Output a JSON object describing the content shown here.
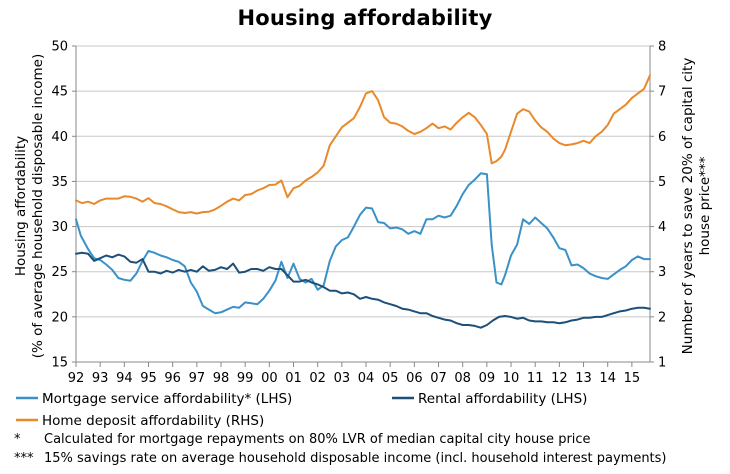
{
  "chart_data": {
    "type": "line",
    "title": "Housing affordability",
    "ylabel_left": [
      "Housing affordability",
      "(% of average household disposable income)"
    ],
    "ylabel_right": [
      "Number of years to save 20% of capital city",
      "house price***"
    ],
    "ylim_left": [
      15,
      50
    ],
    "yticks_left": [
      "15",
      "20",
      "25",
      "30",
      "35",
      "40",
      "45",
      "50"
    ],
    "ylim_right": [
      1,
      8
    ],
    "yticks_right": [
      "1",
      "2",
      "3",
      "4",
      "5",
      "6",
      "7",
      "8"
    ],
    "xlim": [
      1992,
      2015.75
    ],
    "xticks": [
      "92",
      "93",
      "94",
      "95",
      "96",
      "97",
      "98",
      "99",
      "00",
      "01",
      "02",
      "03",
      "04",
      "05",
      "06",
      "07",
      "08",
      "09",
      "10",
      "11",
      "12",
      "13",
      "14",
      "15"
    ],
    "grid": "horizontal",
    "legend_position": "bottom",
    "series": [
      {
        "name": "Mortgage service affordability* (LHS)",
        "axis": "left",
        "color": "#3a91c8",
        "points": [
          [
            1992.0,
            30.8
          ],
          [
            1992.2,
            29.0
          ],
          [
            1992.5,
            27.5
          ],
          [
            1992.75,
            26.5
          ],
          [
            1993.0,
            26.3
          ],
          [
            1993.25,
            25.8
          ],
          [
            1993.5,
            25.2
          ],
          [
            1993.75,
            24.3
          ],
          [
            1994.0,
            24.1
          ],
          [
            1994.25,
            24.0
          ],
          [
            1994.5,
            24.8
          ],
          [
            1994.75,
            26.2
          ],
          [
            1995.0,
            27.3
          ],
          [
            1995.25,
            27.1
          ],
          [
            1995.5,
            26.8
          ],
          [
            1995.75,
            26.6
          ],
          [
            1996.0,
            26.3
          ],
          [
            1996.25,
            26.1
          ],
          [
            1996.5,
            25.6
          ],
          [
            1996.75,
            23.8
          ],
          [
            1997.0,
            22.8
          ],
          [
            1997.25,
            21.2
          ],
          [
            1997.5,
            20.8
          ],
          [
            1997.75,
            20.4
          ],
          [
            1998.0,
            20.5
          ],
          [
            1998.25,
            20.8
          ],
          [
            1998.5,
            21.1
          ],
          [
            1998.75,
            21.0
          ],
          [
            1999.0,
            21.6
          ],
          [
            1999.25,
            21.5
          ],
          [
            1999.5,
            21.4
          ],
          [
            1999.75,
            22.0
          ],
          [
            2000.0,
            22.9
          ],
          [
            2000.25,
            24.0
          ],
          [
            2000.5,
            26.1
          ],
          [
            2000.75,
            24.3
          ],
          [
            2001.0,
            25.9
          ],
          [
            2001.25,
            24.2
          ],
          [
            2001.5,
            23.8
          ],
          [
            2001.75,
            24.2
          ],
          [
            2002.0,
            23.0
          ],
          [
            2002.25,
            23.5
          ],
          [
            2002.5,
            26.2
          ],
          [
            2002.75,
            27.8
          ],
          [
            2003.0,
            28.5
          ],
          [
            2003.25,
            28.8
          ],
          [
            2003.5,
            30.0
          ],
          [
            2003.75,
            31.3
          ],
          [
            2004.0,
            32.1
          ],
          [
            2004.25,
            32.0
          ],
          [
            2004.5,
            30.5
          ],
          [
            2004.75,
            30.4
          ],
          [
            2005.0,
            29.8
          ],
          [
            2005.25,
            29.9
          ],
          [
            2005.5,
            29.7
          ],
          [
            2005.75,
            29.2
          ],
          [
            2006.0,
            29.5
          ],
          [
            2006.25,
            29.2
          ],
          [
            2006.5,
            30.8
          ],
          [
            2006.75,
            30.8
          ],
          [
            2007.0,
            31.2
          ],
          [
            2007.25,
            31.0
          ],
          [
            2007.5,
            31.2
          ],
          [
            2007.75,
            32.3
          ],
          [
            2008.0,
            33.6
          ],
          [
            2008.25,
            34.6
          ],
          [
            2008.5,
            35.2
          ],
          [
            2008.75,
            35.9
          ],
          [
            2009.0,
            35.8
          ],
          [
            2009.2,
            28.0
          ],
          [
            2009.4,
            23.8
          ],
          [
            2009.6,
            23.6
          ],
          [
            2009.75,
            24.6
          ],
          [
            2010.0,
            26.8
          ],
          [
            2010.25,
            28.0
          ],
          [
            2010.5,
            30.8
          ],
          [
            2010.75,
            30.3
          ],
          [
            2011.0,
            31.0
          ],
          [
            2011.25,
            30.4
          ],
          [
            2011.5,
            29.8
          ],
          [
            2011.75,
            28.8
          ],
          [
            2012.0,
            27.6
          ],
          [
            2012.25,
            27.4
          ],
          [
            2012.5,
            25.7
          ],
          [
            2012.75,
            25.8
          ],
          [
            2013.0,
            25.4
          ],
          [
            2013.25,
            24.8
          ],
          [
            2013.5,
            24.5
          ],
          [
            2013.75,
            24.3
          ],
          [
            2014.0,
            24.2
          ],
          [
            2014.25,
            24.7
          ],
          [
            2014.5,
            25.2
          ],
          [
            2014.75,
            25.6
          ],
          [
            2015.0,
            26.3
          ],
          [
            2015.25,
            26.7
          ],
          [
            2015.5,
            26.4
          ],
          [
            2015.75,
            26.4
          ]
        ]
      },
      {
        "name": "Rental affordability (LHS)",
        "axis": "left",
        "color": "#1d4f79",
        "points": [
          [
            1992.0,
            27.0
          ],
          [
            1992.25,
            27.1
          ],
          [
            1992.5,
            27.0
          ],
          [
            1992.75,
            26.2
          ],
          [
            1993.0,
            26.5
          ],
          [
            1993.25,
            26.8
          ],
          [
            1993.5,
            26.6
          ],
          [
            1993.75,
            26.9
          ],
          [
            1994.0,
            26.7
          ],
          [
            1994.25,
            26.1
          ],
          [
            1994.5,
            26.0
          ],
          [
            1994.75,
            26.4
          ],
          [
            1995.0,
            25.0
          ],
          [
            1995.25,
            25.0
          ],
          [
            1995.5,
            24.8
          ],
          [
            1995.75,
            25.1
          ],
          [
            1996.0,
            24.9
          ],
          [
            1996.25,
            25.2
          ],
          [
            1996.5,
            25.0
          ],
          [
            1996.75,
            25.2
          ],
          [
            1997.0,
            25.0
          ],
          [
            1997.25,
            25.6
          ],
          [
            1997.5,
            25.1
          ],
          [
            1997.75,
            25.2
          ],
          [
            1998.0,
            25.5
          ],
          [
            1998.25,
            25.3
          ],
          [
            1998.5,
            25.9
          ],
          [
            1998.75,
            24.9
          ],
          [
            1999.0,
            25.0
          ],
          [
            1999.25,
            25.3
          ],
          [
            1999.5,
            25.3
          ],
          [
            1999.75,
            25.1
          ],
          [
            2000.0,
            25.5
          ],
          [
            2000.25,
            25.3
          ],
          [
            2000.5,
            25.3
          ],
          [
            2000.75,
            24.6
          ],
          [
            2001.0,
            23.9
          ],
          [
            2001.25,
            23.9
          ],
          [
            2001.5,
            24.1
          ],
          [
            2001.75,
            23.8
          ],
          [
            2002.0,
            23.6
          ],
          [
            2002.25,
            23.3
          ],
          [
            2002.5,
            22.9
          ],
          [
            2002.75,
            22.9
          ],
          [
            2003.0,
            22.6
          ],
          [
            2003.25,
            22.7
          ],
          [
            2003.5,
            22.5
          ],
          [
            2003.75,
            22.0
          ],
          [
            2004.0,
            22.2
          ],
          [
            2004.25,
            22.0
          ],
          [
            2004.5,
            21.9
          ],
          [
            2004.75,
            21.6
          ],
          [
            2005.0,
            21.4
          ],
          [
            2005.25,
            21.2
          ],
          [
            2005.5,
            20.9
          ],
          [
            2005.75,
            20.8
          ],
          [
            2006.0,
            20.6
          ],
          [
            2006.25,
            20.4
          ],
          [
            2006.5,
            20.4
          ],
          [
            2006.75,
            20.1
          ],
          [
            2007.0,
            19.9
          ],
          [
            2007.25,
            19.7
          ],
          [
            2007.5,
            19.6
          ],
          [
            2007.75,
            19.3
          ],
          [
            2008.0,
            19.1
          ],
          [
            2008.25,
            19.1
          ],
          [
            2008.5,
            19.0
          ],
          [
            2008.75,
            18.8
          ],
          [
            2009.0,
            19.1
          ],
          [
            2009.25,
            19.6
          ],
          [
            2009.5,
            20.0
          ],
          [
            2009.75,
            20.1
          ],
          [
            2010.0,
            20.0
          ],
          [
            2010.25,
            19.8
          ],
          [
            2010.5,
            19.9
          ],
          [
            2010.75,
            19.6
          ],
          [
            2011.0,
            19.5
          ],
          [
            2011.25,
            19.5
          ],
          [
            2011.5,
            19.4
          ],
          [
            2011.75,
            19.4
          ],
          [
            2012.0,
            19.3
          ],
          [
            2012.25,
            19.4
          ],
          [
            2012.5,
            19.6
          ],
          [
            2012.75,
            19.7
          ],
          [
            2013.0,
            19.9
          ],
          [
            2013.25,
            19.9
          ],
          [
            2013.5,
            20.0
          ],
          [
            2013.75,
            20.0
          ],
          [
            2014.0,
            20.2
          ],
          [
            2014.25,
            20.4
          ],
          [
            2014.5,
            20.6
          ],
          [
            2014.75,
            20.7
          ],
          [
            2015.0,
            20.9
          ],
          [
            2015.25,
            21.0
          ],
          [
            2015.5,
            21.0
          ],
          [
            2015.75,
            20.9
          ]
        ]
      },
      {
        "name": "Home deposit affordability (RHS)",
        "axis": "right",
        "color": "#e8892b",
        "points": [
          [
            1992.0,
            4.58
          ],
          [
            1992.25,
            4.52
          ],
          [
            1992.5,
            4.55
          ],
          [
            1992.75,
            4.5
          ],
          [
            1993.0,
            4.58
          ],
          [
            1993.25,
            4.62
          ],
          [
            1993.5,
            4.62
          ],
          [
            1993.75,
            4.62
          ],
          [
            1994.0,
            4.67
          ],
          [
            1994.25,
            4.66
          ],
          [
            1994.5,
            4.62
          ],
          [
            1994.75,
            4.55
          ],
          [
            1995.0,
            4.63
          ],
          [
            1995.25,
            4.52
          ],
          [
            1995.5,
            4.5
          ],
          [
            1995.75,
            4.45
          ],
          [
            1996.0,
            4.38
          ],
          [
            1996.25,
            4.32
          ],
          [
            1996.5,
            4.3
          ],
          [
            1996.75,
            4.32
          ],
          [
            1997.0,
            4.29
          ],
          [
            1997.25,
            4.32
          ],
          [
            1997.5,
            4.33
          ],
          [
            1997.75,
            4.38
          ],
          [
            1998.0,
            4.46
          ],
          [
            1998.25,
            4.55
          ],
          [
            1998.5,
            4.62
          ],
          [
            1998.75,
            4.58
          ],
          [
            1999.0,
            4.7
          ],
          [
            1999.25,
            4.72
          ],
          [
            1999.5,
            4.8
          ],
          [
            1999.75,
            4.85
          ],
          [
            2000.0,
            4.92
          ],
          [
            2000.25,
            4.93
          ],
          [
            2000.5,
            5.02
          ],
          [
            2000.75,
            4.65
          ],
          [
            2001.0,
            4.85
          ],
          [
            2001.25,
            4.9
          ],
          [
            2001.5,
            5.02
          ],
          [
            2001.75,
            5.1
          ],
          [
            2002.0,
            5.2
          ],
          [
            2002.25,
            5.35
          ],
          [
            2002.5,
            5.8
          ],
          [
            2002.75,
            6.0
          ],
          [
            2003.0,
            6.2
          ],
          [
            2003.25,
            6.3
          ],
          [
            2003.5,
            6.4
          ],
          [
            2003.75,
            6.65
          ],
          [
            2004.0,
            6.95
          ],
          [
            2004.25,
            7.0
          ],
          [
            2004.5,
            6.8
          ],
          [
            2004.75,
            6.42
          ],
          [
            2005.0,
            6.3
          ],
          [
            2005.25,
            6.28
          ],
          [
            2005.5,
            6.22
          ],
          [
            2005.75,
            6.12
          ],
          [
            2006.0,
            6.05
          ],
          [
            2006.25,
            6.1
          ],
          [
            2006.5,
            6.18
          ],
          [
            2006.75,
            6.28
          ],
          [
            2007.0,
            6.18
          ],
          [
            2007.25,
            6.22
          ],
          [
            2007.5,
            6.15
          ],
          [
            2007.75,
            6.3
          ],
          [
            2008.0,
            6.42
          ],
          [
            2008.25,
            6.52
          ],
          [
            2008.5,
            6.42
          ],
          [
            2008.75,
            6.25
          ],
          [
            2009.0,
            6.05
          ],
          [
            2009.2,
            5.4
          ],
          [
            2009.4,
            5.45
          ],
          [
            2009.6,
            5.55
          ],
          [
            2009.75,
            5.7
          ],
          [
            2010.0,
            6.1
          ],
          [
            2010.25,
            6.5
          ],
          [
            2010.5,
            6.6
          ],
          [
            2010.75,
            6.55
          ],
          [
            2011.0,
            6.35
          ],
          [
            2011.25,
            6.2
          ],
          [
            2011.5,
            6.1
          ],
          [
            2011.75,
            5.95
          ],
          [
            2012.0,
            5.85
          ],
          [
            2012.25,
            5.8
          ],
          [
            2012.5,
            5.82
          ],
          [
            2012.75,
            5.85
          ],
          [
            2013.0,
            5.9
          ],
          [
            2013.25,
            5.85
          ],
          [
            2013.5,
            6.0
          ],
          [
            2013.75,
            6.1
          ],
          [
            2014.0,
            6.25
          ],
          [
            2014.25,
            6.5
          ],
          [
            2014.5,
            6.6
          ],
          [
            2014.75,
            6.7
          ],
          [
            2015.0,
            6.85
          ],
          [
            2015.25,
            6.95
          ],
          [
            2015.5,
            7.05
          ],
          [
            2015.75,
            7.35
          ]
        ]
      }
    ],
    "footnotes": [
      {
        "mark": "*",
        "text": "Calculated for mortgage repayments on 80% LVR of median capital city house price"
      },
      {
        "mark": "***",
        "text": "15% savings rate on average household disposable income (incl. household interest payments)"
      }
    ]
  }
}
